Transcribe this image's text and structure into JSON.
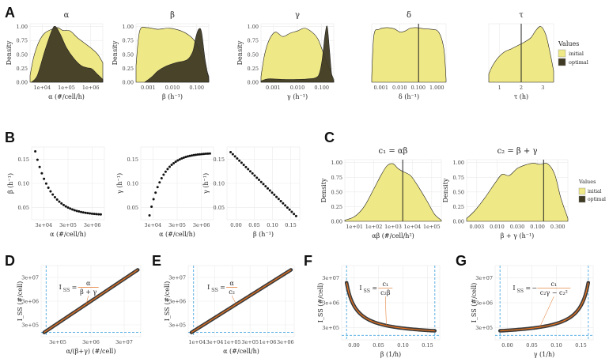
{
  "panel_labels": [
    "A",
    "B",
    "C",
    "D",
    "E",
    "F",
    "G"
  ],
  "colors": {
    "initial": "#efe886",
    "optimal": "#3f3a24",
    "fit_line": "#e07020",
    "dash": "#4aa8e0",
    "grid": "#ebebeb"
  },
  "legend": {
    "title": "Values",
    "initial": "initial",
    "optimal": "optimal"
  },
  "chart_data": [
    {
      "id": "A-alpha",
      "type": "area",
      "title": "α",
      "ylabel": "Density",
      "xlabel": "α (#/cell/h)",
      "x_ticks": [
        "1e+04",
        "1e+05",
        "1e+06"
      ],
      "y_ticks": [
        "0.00",
        "0.25",
        "0.50",
        "0.75",
        "1.00"
      ],
      "ylim": [
        0,
        1.05
      ],
      "series": [
        {
          "name": "initial",
          "x": [
            0,
            0.05,
            0.12,
            0.2,
            0.3,
            0.38,
            0.45,
            0.55,
            0.65,
            0.75,
            0.85,
            0.93,
            1
          ],
          "y": [
            0.12,
            0.45,
            0.72,
            0.88,
            0.95,
            0.98,
            0.93,
            0.92,
            0.8,
            0.7,
            0.6,
            0.5,
            0.35
          ]
        },
        {
          "name": "optimal",
          "x": [
            0.02,
            0.1,
            0.2,
            0.3,
            0.35,
            0.42,
            0.5,
            0.6,
            0.7,
            0.78,
            0.85,
            0.92,
            1
          ],
          "y": [
            0,
            0.12,
            0.55,
            0.93,
            1.0,
            0.85,
            0.62,
            0.43,
            0.3,
            0.26,
            0.24,
            0.15,
            0.05
          ]
        }
      ]
    },
    {
      "id": "A-beta",
      "type": "area",
      "title": "β",
      "ylabel": "Density",
      "xlabel": "β (h⁻¹)",
      "x_ticks": [
        "0.001",
        "0.010",
        "0.100"
      ],
      "y_ticks": [
        "0.00",
        "0.25",
        "0.50",
        "0.75",
        "1.00"
      ],
      "ylim": [
        0,
        1.05
      ],
      "series": [
        {
          "name": "initial",
          "x": [
            0,
            0.05,
            0.15,
            0.3,
            0.45,
            0.6,
            0.72,
            0.8,
            0.88,
            0.95,
            1
          ],
          "y": [
            0.3,
            0.92,
            0.98,
            0.95,
            0.97,
            0.93,
            0.85,
            0.75,
            0.55,
            0.3,
            0.1
          ]
        },
        {
          "name": "optimal",
          "x": [
            0.12,
            0.22,
            0.3,
            0.4,
            0.55,
            0.7,
            0.78,
            0.82,
            0.86,
            0.9,
            0.95,
            1
          ],
          "y": [
            0,
            0.1,
            0.2,
            0.28,
            0.35,
            0.4,
            0.55,
            0.8,
            0.95,
            0.9,
            0.4,
            0.05
          ]
        }
      ]
    },
    {
      "id": "A-gamma",
      "type": "area",
      "title": "γ",
      "ylabel": "Density",
      "xlabel": "γ (h⁻¹)",
      "x_ticks": [
        "0.001",
        "0.010",
        "0.100"
      ],
      "y_ticks": [
        "0.00",
        "0.25",
        "0.50",
        "0.75",
        "1.00"
      ],
      "ylim": [
        0,
        1.05
      ],
      "series": [
        {
          "name": "initial",
          "x": [
            0,
            0.05,
            0.12,
            0.2,
            0.3,
            0.4,
            0.5,
            0.6,
            0.7,
            0.78,
            0.85,
            0.92,
            1
          ],
          "y": [
            0.1,
            0.5,
            0.78,
            0.9,
            0.82,
            0.88,
            0.92,
            0.97,
            0.9,
            0.78,
            0.55,
            0.3,
            0.05
          ]
        },
        {
          "name": "optimal",
          "x": [
            0,
            0.1,
            0.3,
            0.5,
            0.65,
            0.75,
            0.8,
            0.84,
            0.88,
            0.91,
            0.94,
            0.97,
            1
          ],
          "y": [
            0.02,
            0.06,
            0.05,
            0.05,
            0.06,
            0.08,
            0.15,
            0.4,
            0.85,
            1.0,
            0.6,
            0.15,
            0.02
          ]
        }
      ]
    },
    {
      "id": "A-delta",
      "type": "area",
      "title": "δ",
      "ylabel": "",
      "xlabel": "δ (h⁻¹)",
      "x_ticks": [
        "0.001",
        "0.010",
        "0.100",
        "1.000"
      ],
      "y_ticks": [],
      "ylim": [
        0,
        1.05
      ],
      "optimal_value_x": 0.63,
      "series": [
        {
          "name": "initial",
          "x": [
            0,
            0.03,
            0.1,
            0.2,
            0.3,
            0.38,
            0.45,
            0.52,
            0.6,
            0.7,
            0.8,
            0.9,
            0.97,
            1
          ],
          "y": [
            0.1,
            0.85,
            0.95,
            0.98,
            0.96,
            0.9,
            0.92,
            0.97,
            0.98,
            0.96,
            0.95,
            0.9,
            0.6,
            0.05
          ]
        }
      ]
    },
    {
      "id": "A-tau",
      "type": "area",
      "title": "τ",
      "ylabel": "",
      "xlabel": "τ (h)",
      "x_ticks": [
        "1",
        "2",
        "3"
      ],
      "y_ticks": [],
      "ylim": [
        0,
        1.05
      ],
      "optimal_value_x": 0.5,
      "series": [
        {
          "name": "initial",
          "x": [
            0,
            0.06,
            0.15,
            0.25,
            0.35,
            0.45,
            0.55,
            0.65,
            0.72,
            0.8,
            0.88,
            0.95,
            1
          ],
          "y": [
            0.15,
            0.3,
            0.45,
            0.55,
            0.6,
            0.66,
            0.72,
            0.8,
            0.92,
            1.0,
            0.85,
            0.5,
            0.2
          ]
        }
      ]
    },
    {
      "id": "B-alpha-beta",
      "type": "scatter",
      "title": "",
      "ylabel": "β (h⁻¹)",
      "xlabel": "α (#/cell/h)",
      "x_ticks": [
        "3e+04",
        "3e+05",
        "3e+06"
      ],
      "y_ticks": [
        "0.05",
        "0.10",
        "0.15"
      ],
      "curve": "decay"
    },
    {
      "id": "B-alpha-gamma",
      "type": "scatter",
      "title": "",
      "ylabel": "γ (h⁻¹)",
      "xlabel": "α (#/cell/h)",
      "x_ticks": [
        "3e+04",
        "3e+05",
        "3e+06"
      ],
      "y_ticks": [
        "0.05",
        "0.10",
        "0.15"
      ],
      "curve": "saturate"
    },
    {
      "id": "B-beta-gamma",
      "type": "scatter",
      "title": "",
      "ylabel": "γ (h⁻¹)",
      "xlabel": "β (h⁻¹)",
      "x_ticks": [
        "0.00",
        "0.05",
        "0.10",
        "0.15"
      ],
      "y_ticks": [
        "0.05",
        "0.10",
        "0.15"
      ],
      "curve": "linear-down"
    },
    {
      "id": "C-c1",
      "type": "area",
      "title": "c₁ = αβ",
      "ylabel": "Density",
      "xlabel": "αβ (#/cell/h²)",
      "x_ticks": [
        "1e+01",
        "1e+02",
        "1e+03",
        "1e+04",
        "1e+05"
      ],
      "y_ticks": [
        "0.00",
        "0.25",
        "0.50",
        "0.75",
        "1.00"
      ],
      "ylim": [
        0,
        1.05
      ],
      "optimal_value_x": 0.6,
      "series": [
        {
          "name": "initial",
          "x": [
            0,
            0.1,
            0.2,
            0.3,
            0.38,
            0.44,
            0.5,
            0.55,
            0.6,
            0.68,
            0.75,
            0.85,
            0.93,
            1
          ],
          "y": [
            0.02,
            0.08,
            0.25,
            0.55,
            0.8,
            0.95,
            0.98,
            0.9,
            0.85,
            0.78,
            0.62,
            0.35,
            0.12,
            0.02
          ]
        }
      ]
    },
    {
      "id": "C-c2",
      "type": "area",
      "title": "c₂ = β + γ",
      "ylabel": "Density",
      "xlabel": "β + γ (h⁻¹)",
      "x_ticks": [
        "0.003",
        "0.010",
        "0.030",
        "0.100",
        "0.300"
      ],
      "y_ticks": [
        "0.00",
        "0.25",
        "0.50",
        "0.75",
        "1.00"
      ],
      "ylim": [
        0,
        1.05
      ],
      "optimal_value_x": 0.76,
      "series": [
        {
          "name": "initial",
          "x": [
            0,
            0.08,
            0.18,
            0.28,
            0.35,
            0.42,
            0.5,
            0.58,
            0.66,
            0.72,
            0.8,
            0.87,
            0.93,
            1
          ],
          "y": [
            0.05,
            0.18,
            0.4,
            0.65,
            0.8,
            0.78,
            0.9,
            0.96,
            0.99,
            0.97,
            0.98,
            0.8,
            0.4,
            0.05
          ]
        }
      ]
    },
    {
      "id": "D",
      "type": "scatter",
      "title": "",
      "ylabel": "I_SS (#/cell)",
      "xlabel": "α/(β+γ) (#/cell)",
      "x_ticks": [
        "3e+05",
        "3e+06",
        "3e+07"
      ],
      "y_ticks": [
        "3e+05",
        "3e+06",
        "3e+07"
      ],
      "curve": "identity",
      "annotation": {
        "lhs": "I",
        "sub": "SS",
        "num": "α",
        "den": "β + γ"
      }
    },
    {
      "id": "E",
      "type": "scatter",
      "title": "",
      "ylabel": "I_SS (#/cell)",
      "xlabel": "α (#/cell/h)",
      "x_ticks": [
        "1e+04",
        "3e+04",
        "1e+05",
        "3e+05",
        "1e+06",
        "3e+06"
      ],
      "y_ticks": [
        "3e+05",
        "3e+06",
        "3e+07"
      ],
      "curve": "identity",
      "annotation": {
        "lhs": "I",
        "sub": "SS",
        "num": "α",
        "den": "c₂"
      }
    },
    {
      "id": "F",
      "type": "scatter",
      "title": "",
      "ylabel": "I_SS (#/cell)",
      "xlabel": "β (1/h)",
      "x_ticks": [
        "0.00",
        "0.05",
        "0.10",
        "0.15"
      ],
      "y_ticks": [
        "3e+05",
        "3e+06",
        "3e+07"
      ],
      "curve": "hyperbola-down",
      "annotation": {
        "lhs": "I",
        "sub": "SS",
        "num": "c₁",
        "den": "c₂β"
      }
    },
    {
      "id": "G",
      "type": "scatter",
      "title": "",
      "ylabel": "I_SS (#/cell)",
      "xlabel": "γ (1/h)",
      "x_ticks": [
        "0.00",
        "0.05",
        "0.10",
        "0.15"
      ],
      "y_ticks": [
        "3e+05",
        "3e+06",
        "3e+07"
      ],
      "curve": "hyperbola-up",
      "annotation": {
        "lhs": "I",
        "sub": "SS",
        "neg": "−",
        "num": "c₁",
        "den": "c₂γ − c₂²"
      }
    }
  ]
}
